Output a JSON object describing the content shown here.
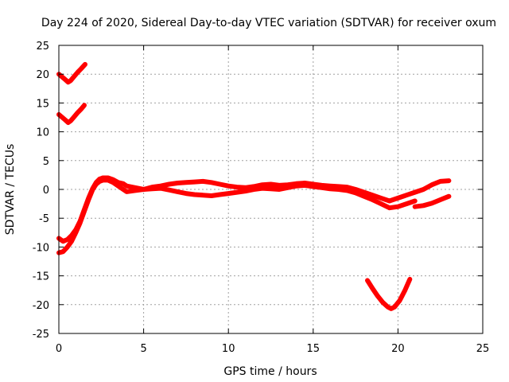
{
  "chart_data": {
    "type": "line",
    "title": "Day 224 of 2020, Sidereal Day-to-day VTEC variation (SDTVAR) for receiver oxum",
    "xlabel": "GPS time / hours",
    "ylabel": "SDTVAR / TECUs",
    "xlim": [
      0,
      25
    ],
    "ylim": [
      -25,
      25
    ],
    "xticks": [
      0,
      5,
      10,
      15,
      20,
      25
    ],
    "yticks": [
      -25,
      -20,
      -15,
      -10,
      -5,
      0,
      5,
      10,
      15,
      20,
      25
    ],
    "xtick_labels": [
      "0",
      "5",
      "10",
      "15",
      "20",
      "25"
    ],
    "ytick_labels": [
      "-25",
      "-20",
      "-15",
      "-10",
      "-5",
      "0",
      "5",
      "10",
      "15",
      "20",
      "25"
    ],
    "grid": true,
    "color": "#ff0000",
    "series": [
      {
        "name": "trace-upper-v",
        "x": [
          0.0,
          0.2,
          0.4,
          0.55,
          0.7,
          0.9,
          1.1,
          1.3,
          1.55
        ],
        "y": [
          20.0,
          19.5,
          19.0,
          18.6,
          18.9,
          19.6,
          20.3,
          20.9,
          21.7
        ]
      },
      {
        "name": "trace-middle-v",
        "x": [
          0.0,
          0.2,
          0.4,
          0.55,
          0.7,
          0.9,
          1.1,
          1.3,
          1.5
        ],
        "y": [
          13.0,
          12.5,
          12.0,
          11.6,
          11.9,
          12.6,
          13.3,
          13.9,
          14.6
        ]
      },
      {
        "name": "trace-main-upper",
        "x": [
          0.0,
          0.25,
          0.5,
          0.75,
          1.0,
          1.25,
          1.5,
          1.75,
          2.0,
          2.2,
          2.4,
          2.6,
          2.9,
          3.2,
          3.5,
          3.8,
          4.0,
          4.5,
          5.0,
          5.5,
          6.0,
          6.5,
          7.0,
          7.5,
          8.0,
          8.5,
          9.0,
          9.5,
          10.0,
          10.5,
          11.0,
          11.5,
          12.0,
          12.5,
          13.0,
          13.5,
          14.0,
          14.5,
          15.0,
          15.5,
          16.0,
          16.5,
          17.0,
          17.5,
          18.0,
          18.5,
          19.0,
          19.5,
          20.0,
          20.5,
          21.0,
          21.5,
          22.0,
          22.5,
          23.0
        ],
        "y": [
          -8.5,
          -9.0,
          -8.7,
          -8.0,
          -7.0,
          -5.5,
          -3.5,
          -1.5,
          0.2,
          1.2,
          1.8,
          2.0,
          2.0,
          1.7,
          1.2,
          1.0,
          0.6,
          0.3,
          0.0,
          0.4,
          0.6,
          0.9,
          1.1,
          1.2,
          1.3,
          1.4,
          1.2,
          0.9,
          0.6,
          0.4,
          0.3,
          0.5,
          0.8,
          0.9,
          0.7,
          0.8,
          1.0,
          1.1,
          0.9,
          0.7,
          0.6,
          0.5,
          0.4,
          0.0,
          -0.5,
          -1.0,
          -1.5,
          -2.0,
          -1.5,
          -1.0,
          -0.5,
          0.0,
          0.8,
          1.4,
          1.5
        ]
      },
      {
        "name": "trace-main-lower",
        "x": [
          0.0,
          0.25,
          0.5,
          0.75,
          1.0,
          1.25,
          1.5,
          1.75,
          2.0,
          2.2,
          2.4,
          2.6,
          2.9,
          3.2,
          3.5,
          3.8,
          4.0,
          4.5,
          5.0,
          5.5,
          6.0,
          6.5,
          7.0,
          7.5,
          8.0,
          8.5,
          9.0,
          9.5,
          10.0,
          10.5,
          11.0,
          11.5,
          12.0,
          12.5,
          13.0,
          13.5,
          14.0,
          14.5,
          15.0,
          15.5,
          16.0,
          16.5,
          17.0,
          17.5,
          18.0,
          18.5,
          19.0,
          19.5,
          20.0,
          20.5,
          21.0
        ],
        "y": [
          -11.0,
          -10.8,
          -10.0,
          -9.0,
          -7.5,
          -5.8,
          -3.8,
          -1.8,
          0.0,
          0.9,
          1.4,
          1.6,
          1.6,
          1.2,
          0.6,
          0.0,
          -0.4,
          -0.2,
          0.0,
          0.1,
          0.2,
          -0.1,
          -0.4,
          -0.7,
          -0.9,
          -1.0,
          -1.1,
          -0.9,
          -0.7,
          -0.5,
          -0.3,
          0.0,
          0.2,
          0.1,
          0.0,
          0.3,
          0.6,
          0.7,
          0.5,
          0.3,
          0.1,
          0.0,
          -0.2,
          -0.6,
          -1.2,
          -1.8,
          -2.5,
          -3.2,
          -3.0,
          -2.5,
          -2.0
        ]
      },
      {
        "name": "trace-tail-right",
        "x": [
          21.0,
          21.5,
          22.0,
          22.5,
          23.0
        ],
        "y": [
          -3.0,
          -2.8,
          -2.4,
          -1.8,
          -1.2
        ]
      },
      {
        "name": "trace-bottom-v",
        "x": [
          18.2,
          18.5,
          18.8,
          19.1,
          19.4,
          19.6,
          19.8,
          20.1,
          20.4,
          20.7
        ],
        "y": [
          -15.8,
          -17.2,
          -18.5,
          -19.6,
          -20.4,
          -20.7,
          -20.4,
          -19.3,
          -17.6,
          -15.6
        ]
      }
    ]
  }
}
